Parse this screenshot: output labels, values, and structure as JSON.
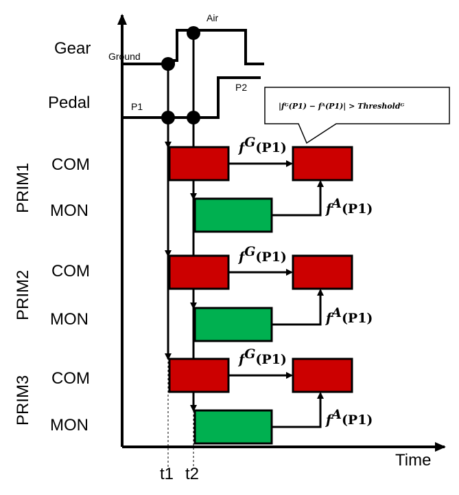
{
  "signals": {
    "gear": "Gear",
    "pedal": "Pedal",
    "ground": "Ground",
    "air": "Air",
    "p1": "P1",
    "p2": "P2"
  },
  "prims": [
    {
      "label": "PRIM1",
      "com": "COM",
      "mon": "MON"
    },
    {
      "label": "PRIM2",
      "com": "COM",
      "mon": "MON"
    },
    {
      "label": "PRIM3",
      "com": "COM",
      "mon": "MON"
    }
  ],
  "formulas": {
    "fg_letter": "f",
    "fg_sup": "G",
    "fa_letter": "f",
    "fa_sup": "A",
    "arg": "(P1)"
  },
  "callout": {
    "text": "|fᴳ(P1) − fᴬ(P1)| > Thresholdᴳ"
  },
  "axis": {
    "time": "Time",
    "t1": "t1",
    "t2": "t2"
  },
  "colors": {
    "com_box": "#cc0000",
    "mon_box": "#00b050",
    "line": "#000000"
  }
}
